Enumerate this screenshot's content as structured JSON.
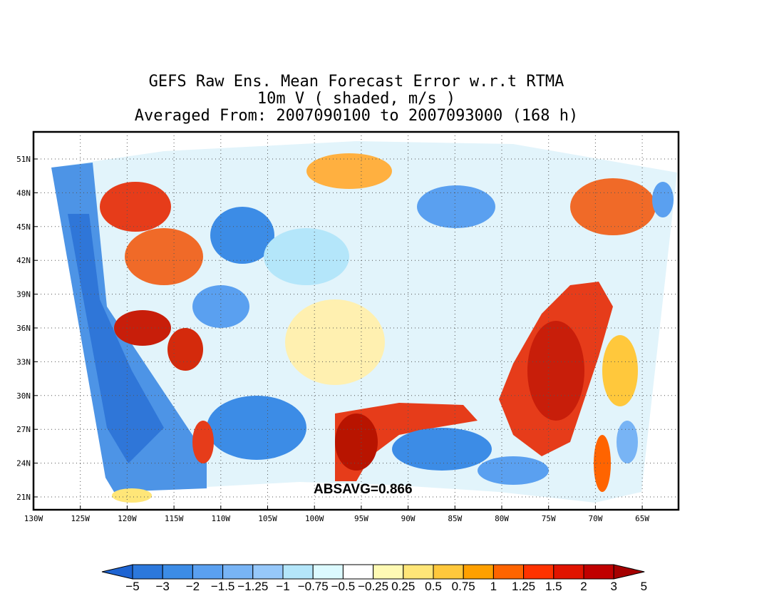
{
  "header": {
    "line1": "GEFS Raw Ens. Mean Forecast Error w.r.t RTMA",
    "line2": "10m V ( shaded, m/s )",
    "line3": "Averaged From: 2007090100 to 2007093000 (168 h)"
  },
  "annotation": "ABSAVG=0.866",
  "axes": {
    "lat_ticks": [
      "21N",
      "24N",
      "27N",
      "30N",
      "33N",
      "36N",
      "39N",
      "42N",
      "45N",
      "48N",
      "51N"
    ],
    "lon_ticks": [
      "130W",
      "125W",
      "120W",
      "115W",
      "110W",
      "105W",
      "100W",
      "95W",
      "90W",
      "85W",
      "80W",
      "75W",
      "70W",
      "65W"
    ],
    "grid": "dotted"
  },
  "colorbar": {
    "levels": [
      "-5",
      "-3",
      "-2",
      "-1.5",
      "-1.25",
      "-1",
      "-0.75",
      "-0.5",
      "-0.25",
      "0.25",
      "0.5",
      "0.75",
      "1",
      "1.25",
      "1.5",
      "2",
      "3",
      "5"
    ],
    "colors": [
      "#1e64d2",
      "#2c78dc",
      "#3c8ce6",
      "#5aa0f0",
      "#78b4f5",
      "#96c8fa",
      "#b4e6fa",
      "#dcfaff",
      "#ffffff",
      "#fffab4",
      "#ffe678",
      "#ffc83c",
      "#ffa000",
      "#ff6400",
      "#ff3200",
      "#e11400",
      "#c00000",
      "#a50000"
    ]
  },
  "colors": {
    "strong_negative": "#1e64d2",
    "weak_negative": "#96c8fa",
    "neutral": "#ffffff",
    "weak_positive": "#ffe678",
    "strong_positive": "#c00000"
  }
}
